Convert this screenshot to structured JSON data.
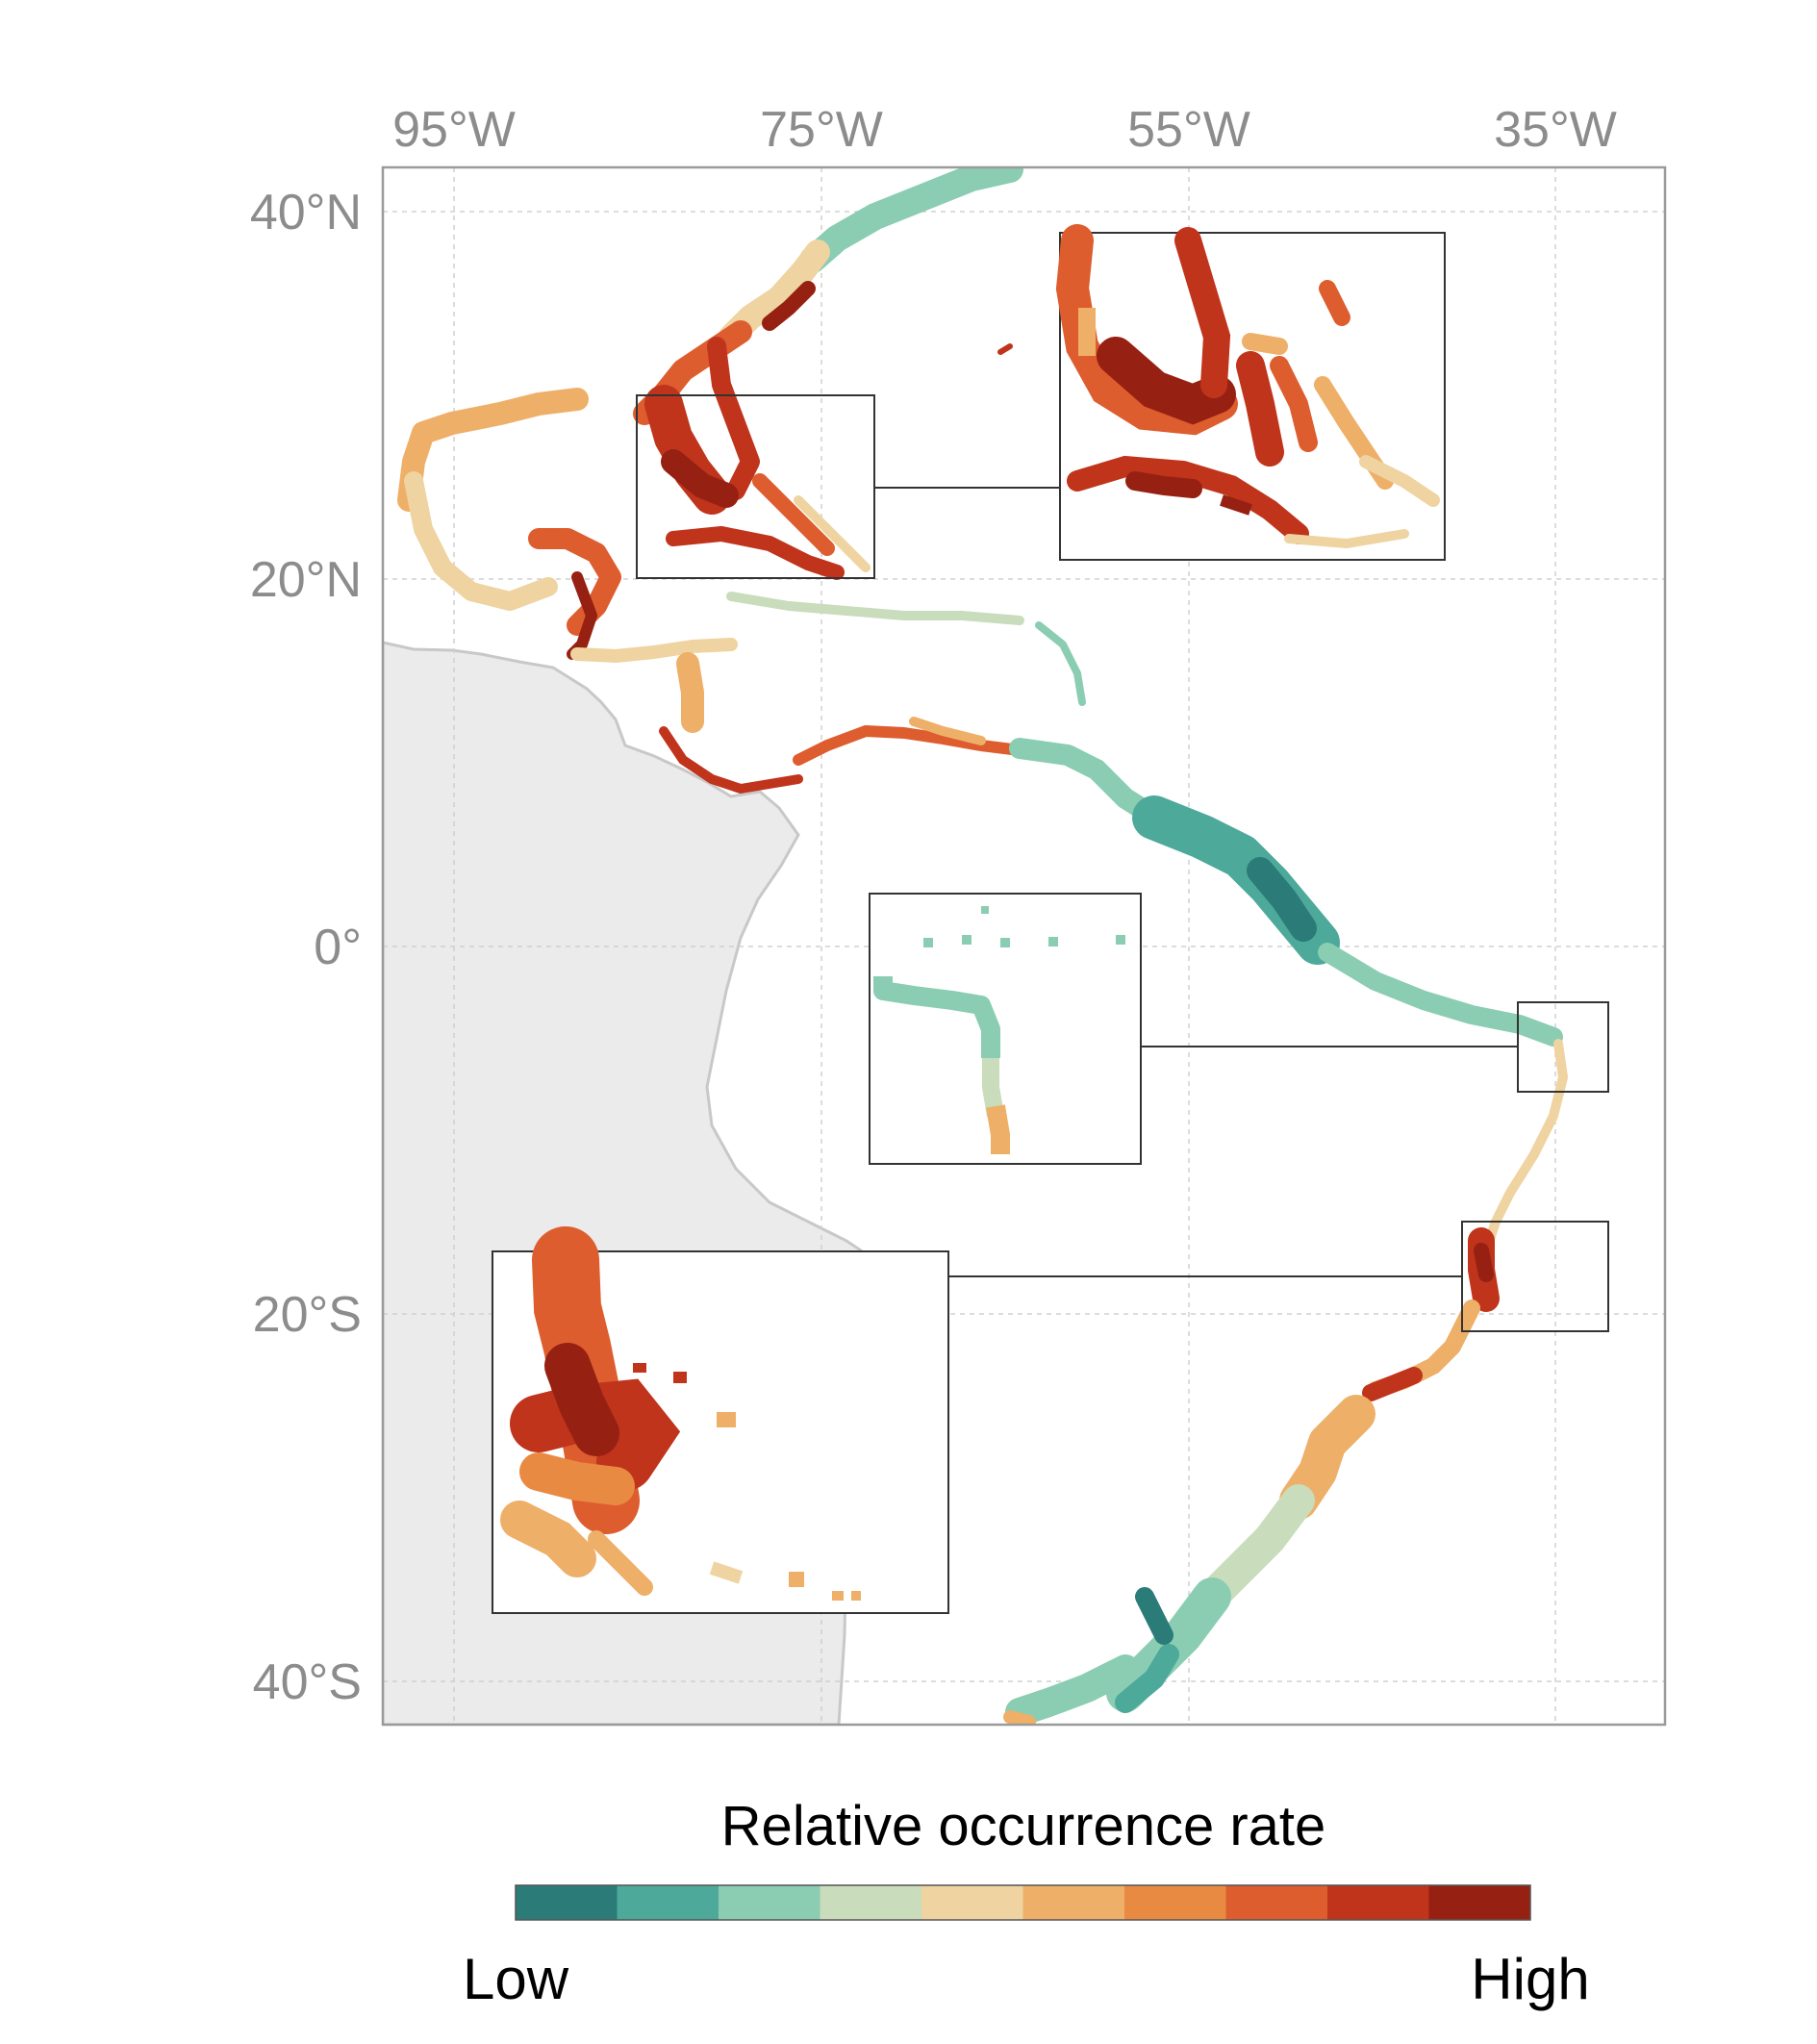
{
  "map": {
    "lon_labels": [
      "95°W",
      "75°W",
      "55°W",
      "35°W"
    ],
    "lat_labels": [
      "40°N",
      "20°N",
      "0°",
      "20°S",
      "40°S"
    ],
    "colors": {
      "land": "#ebebeb",
      "land_border": "#c8c8c8",
      "grid": "#d0d0d0",
      "frame": "#9a9a9a",
      "inset_border": "#333333"
    }
  },
  "legend": {
    "title": "Relative occurrence rate",
    "low_label": "Low",
    "high_label": "High",
    "colors": [
      "#2b7b78",
      "#4da99a",
      "#8acdb2",
      "#c9dcbb",
      "#efd3a0",
      "#eeaf68",
      "#e98a42",
      "#dd5d2f",
      "#c0341c",
      "#962112"
    ]
  }
}
